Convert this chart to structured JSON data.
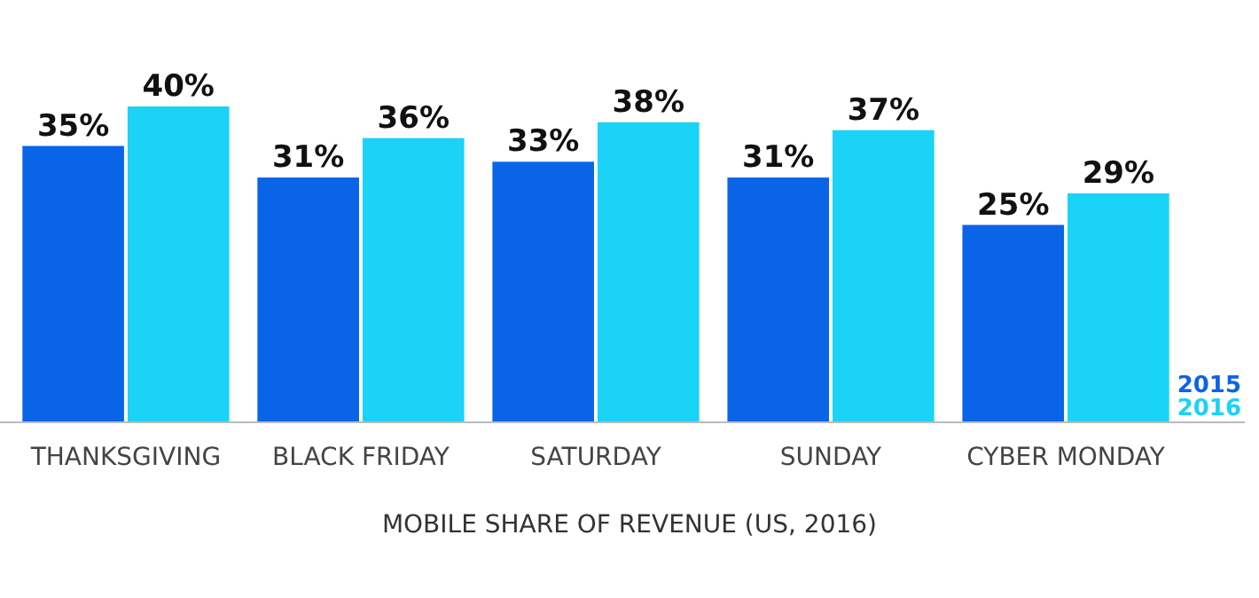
{
  "chart_data": {
    "type": "bar",
    "title": "MOBILE SHARE OF REVENUE (US, 2016)",
    "categories": [
      "THANKSGIVING",
      "BLACK FRIDAY",
      "SATURDAY",
      "SUNDAY",
      "CYBER MONDAY"
    ],
    "series": [
      {
        "name": "2015",
        "color": "#0a64e8",
        "values": [
          35,
          31,
          33,
          31,
          25
        ],
        "value_labels": [
          "35%",
          "31%",
          "33%",
          "31%",
          "25%"
        ]
      },
      {
        "name": "2016",
        "color": "#1ad3f7",
        "values": [
          40,
          36,
          38,
          37,
          29
        ],
        "value_labels": [
          "40%",
          "36%",
          "38%",
          "37%",
          "29%"
        ]
      }
    ],
    "legend": "bottom right",
    "grid": false
  }
}
